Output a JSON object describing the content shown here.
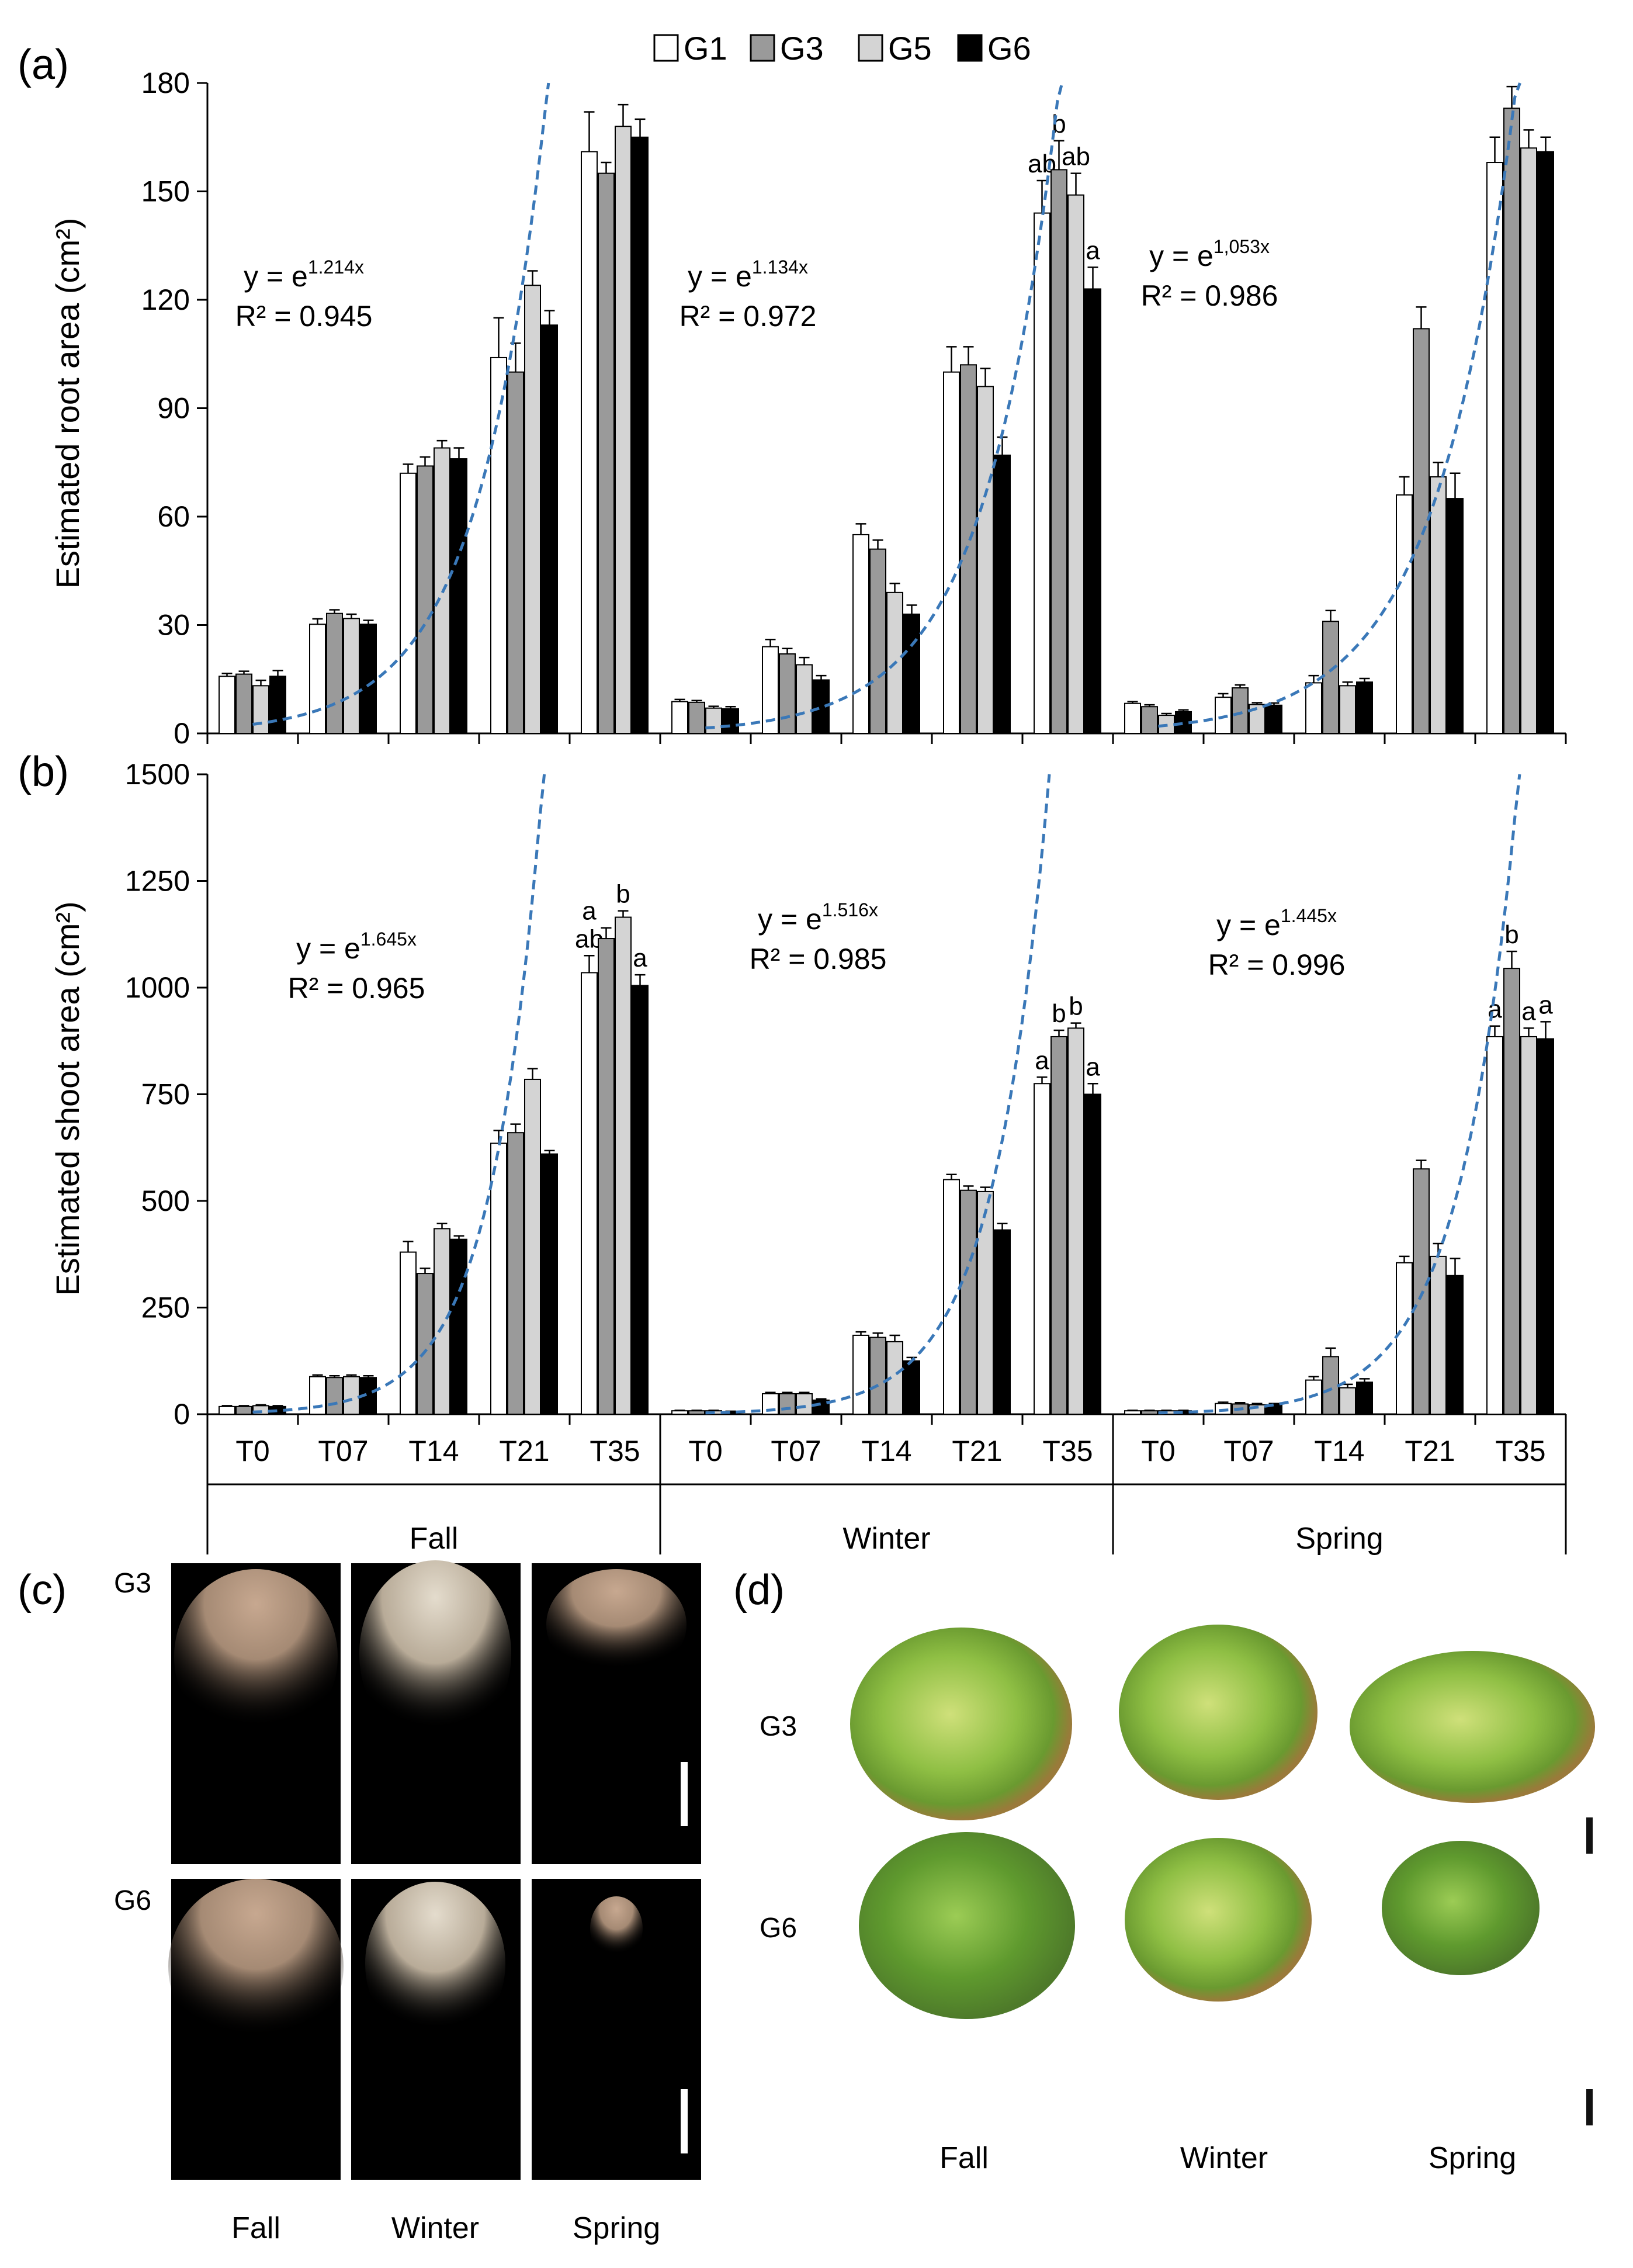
{
  "legend": [
    {
      "name": "G1",
      "fill": "#ffffff"
    },
    {
      "name": "G3",
      "fill": "#9a9a9a"
    },
    {
      "name": "G5",
      "fill": "#d4d4d4"
    },
    {
      "name": "G6",
      "fill": "#000000"
    }
  ],
  "colors": {
    "fit_line": "#3a78b8",
    "bar_edge": "#000000",
    "photo_bg": "#000000"
  },
  "chart_data": [
    {
      "type": "bar",
      "panel_label": "(a)",
      "ylabel": "Estimated root area (cm²)",
      "ylim": [
        0,
        180
      ],
      "yticks": [
        0,
        30,
        60,
        90,
        120,
        150,
        180
      ],
      "seasons": [
        "Fall",
        "Winter",
        "Spring"
      ],
      "timepoints": [
        "T0",
        "T07",
        "T14",
        "T21",
        "T35"
      ],
      "series_names": [
        "G1",
        "G3",
        "G5",
        "G6"
      ],
      "values": {
        "Fall": [
          [
            15.8,
            16.4,
            13.2,
            15.8
          ],
          [
            30.2,
            33.2,
            31.8,
            30.2
          ],
          [
            72,
            74,
            79,
            76
          ],
          [
            104,
            100,
            124,
            113
          ],
          [
            161,
            155,
            168,
            165
          ]
        ],
        "Winter": [
          [
            8.8,
            8.6,
            7.0,
            6.8
          ],
          [
            24,
            22,
            19,
            14.8
          ],
          [
            55,
            51,
            39,
            33
          ],
          [
            100,
            102,
            96,
            77
          ],
          [
            144,
            156,
            149,
            123
          ]
        ],
        "Spring": [
          [
            8.3,
            7.4,
            5.0,
            6.0
          ],
          [
            10,
            12.6,
            8.0,
            7.8
          ],
          [
            14,
            31,
            13.2,
            14.2
          ],
          [
            66,
            112,
            71,
            65
          ],
          [
            158,
            173,
            162,
            161
          ]
        ]
      },
      "errors": {
        "Fall": [
          [
            0.8,
            0.8,
            1.5,
            1.6
          ],
          [
            1.5,
            1.0,
            1.2,
            1.1
          ],
          [
            2.5,
            2.5,
            2.0,
            3.0
          ],
          [
            11,
            8,
            4,
            4
          ],
          [
            11,
            3,
            6,
            5
          ]
        ],
        "Winter": [
          [
            0.6,
            0.5,
            0.5,
            0.6
          ],
          [
            2,
            1.5,
            2,
            1.2
          ],
          [
            3,
            2.5,
            2.5,
            2.5
          ],
          [
            7,
            5,
            5,
            5
          ],
          [
            9,
            8,
            6,
            6
          ]
        ],
        "Spring": [
          [
            0.5,
            0.5,
            0.5,
            0.5
          ],
          [
            1,
            0.8,
            0.5,
            0.6
          ],
          [
            2,
            3,
            1,
            1
          ],
          [
            5,
            6,
            4,
            7
          ],
          [
            7,
            6,
            5,
            4
          ]
        ]
      },
      "letters": {
        "Winter": {
          "T35": [
            "ab",
            "b",
            "ab",
            "a"
          ]
        }
      },
      "fits": [
        {
          "season": "Fall",
          "base": "y = e",
          "exponent": "1.214x",
          "r2": "R² = 0.945",
          "y0": 2.5,
          "k": 1.214,
          "start": 0.5,
          "stop": 4.4
        },
        {
          "season": "Winter",
          "base": "y = e",
          "exponent": "1.134x",
          "r2": "R² = 0.972",
          "y0": 1.5,
          "k": 1.134,
          "start": 0.5,
          "stop": 4.7
        },
        {
          "season": "Spring",
          "base": "y = e",
          "exponent": "1,053x",
          "r2": "R² = 0.986",
          "y0": 2,
          "k": 1.053,
          "start": 0.5,
          "stop": 5.0
        }
      ]
    },
    {
      "type": "bar",
      "panel_label": "(b)",
      "ylabel": "Estimated shoot area (cm²)",
      "ylim": [
        0,
        1500
      ],
      "yticks": [
        0,
        250,
        500,
        750,
        1000,
        1250,
        1500
      ],
      "seasons": [
        "Fall",
        "Winter",
        "Spring"
      ],
      "timepoints": [
        "T0",
        "T07",
        "T14",
        "T21",
        "T35"
      ],
      "series_names": [
        "G1",
        "G3",
        "G5",
        "G6"
      ],
      "values": {
        "Fall": [
          [
            18,
            18,
            20,
            18
          ],
          [
            88,
            86,
            88,
            86
          ],
          [
            380,
            330,
            435,
            410
          ],
          [
            635,
            660,
            785,
            610
          ],
          [
            1035,
            1115,
            1165,
            1005
          ]
        ],
        "Winter": [
          [
            8,
            8,
            8,
            6
          ],
          [
            48,
            48,
            48,
            33
          ],
          [
            185,
            180,
            170,
            125
          ],
          [
            550,
            525,
            522,
            432
          ],
          [
            775,
            885,
            905,
            750
          ]
        ],
        "Spring": [
          [
            8,
            8,
            8,
            8
          ],
          [
            25,
            24,
            22,
            22
          ],
          [
            80,
            135,
            62,
            75
          ],
          [
            355,
            575,
            370,
            325
          ],
          [
            885,
            1045,
            885,
            880
          ]
        ]
      },
      "errors": {
        "Fall": [
          [
            2,
            2,
            2,
            2
          ],
          [
            4,
            4,
            4,
            4
          ],
          [
            25,
            12,
            12,
            8
          ],
          [
            30,
            20,
            25,
            8
          ],
          [
            40,
            25,
            15,
            25
          ]
        ],
        "Winter": [
          [
            1,
            1,
            1,
            1
          ],
          [
            3,
            3,
            3,
            3
          ],
          [
            8,
            10,
            15,
            8
          ],
          [
            12,
            10,
            10,
            15
          ],
          [
            15,
            15,
            12,
            25
          ]
        ],
        "Spring": [
          [
            1,
            1,
            1,
            1
          ],
          [
            3,
            3,
            3,
            3
          ],
          [
            8,
            20,
            8,
            8
          ],
          [
            15,
            20,
            30,
            40
          ],
          [
            25,
            40,
            20,
            40
          ]
        ]
      },
      "letters": {
        "Fall": {
          "T35": [
            "a|ab",
            "",
            "b",
            "a"
          ]
        },
        "Winter": {
          "T35": [
            "a",
            "b",
            "b",
            "a"
          ]
        },
        "Spring": {
          "T35": [
            "a",
            "b",
            "a",
            "a"
          ]
        }
      },
      "fits": [
        {
          "season": "Fall",
          "base": "y = e",
          "exponent": "1.645x",
          "r2": "R² = 0.965",
          "y0": 5,
          "k": 1.645,
          "start": 0.5,
          "stop": 4.18
        },
        {
          "season": "Winter",
          "base": "y = e",
          "exponent": "1.516x",
          "r2": "R² = 0.985",
          "y0": 3,
          "k": 1.516,
          "start": 0.5,
          "stop": 4.55
        },
        {
          "season": "Spring",
          "base": "y = e",
          "exponent": "1.445x",
          "r2": "R² = 0.996",
          "y0": 3,
          "k": 1.445,
          "start": 0.5,
          "stop": 4.7
        }
      ]
    }
  ],
  "photos_c": {
    "panel_label": "(c)",
    "rows": [
      "G3",
      "G6"
    ],
    "columns": [
      "Fall",
      "Winter",
      "Spring"
    ]
  },
  "photos_d": {
    "panel_label": "(d)",
    "rows": [
      "G3",
      "G6"
    ],
    "columns": [
      "Fall",
      "Winter",
      "Spring"
    ]
  }
}
